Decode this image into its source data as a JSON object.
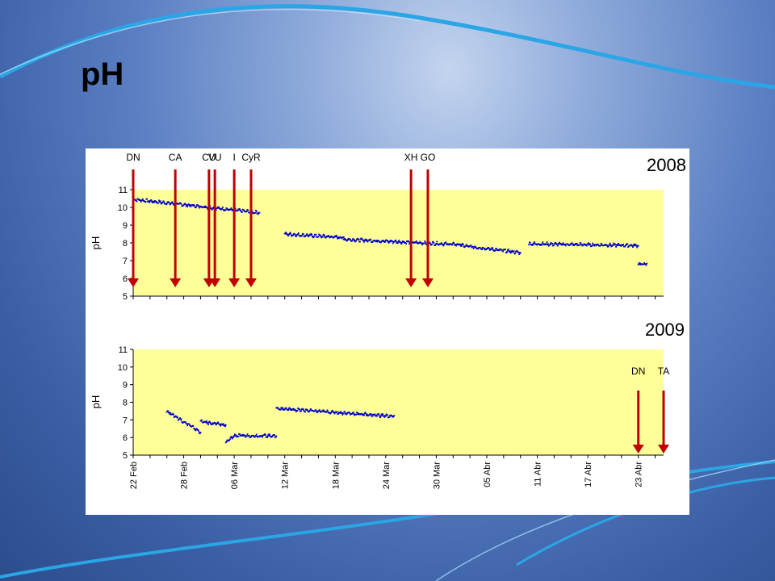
{
  "slide": {
    "title": "pH"
  },
  "colors": {
    "plot_bg": "#ffff99",
    "series": "#0000cc",
    "marker": "#c00000"
  },
  "chart_data": [
    {
      "type": "scatter",
      "year_label": "2008",
      "ylabel": "pH",
      "ylim": [
        5,
        11
      ],
      "yticks": [
        "5",
        "6",
        "7",
        "8",
        "9",
        "10",
        "11"
      ],
      "xlim": [
        "22 Feb",
        "26 Abr"
      ],
      "event_markers": [
        {
          "label": "DN",
          "date": "22 Feb"
        },
        {
          "label": "CA",
          "date": "27 Feb"
        },
        {
          "label": "CU",
          "date": "3 Mar"
        },
        {
          "label": "I",
          "date": "6 Mar"
        },
        {
          "label": "CyR",
          "date": "8 Mar"
        },
        {
          "label": "VU",
          "date": "",
          "hidden_date_note": ""
        },
        {
          "label": "XH",
          "date": "27 Mar"
        },
        {
          "label": "GO",
          "date": "29 Mar"
        }
      ],
      "segments": [
        {
          "start": "22 Feb",
          "end": "9 Mar",
          "y_start": 10.45,
          "y_end": 9.7
        },
        {
          "start": "12 Mar",
          "end": "19 Mar",
          "y_start": 8.5,
          "y_end": 8.3
        },
        {
          "start": "19 Mar",
          "end": "2 Abr",
          "y_start": 8.2,
          "y_end": 7.9
        },
        {
          "start": "2 Abr",
          "end": "9 Abr",
          "y_start": 7.85,
          "y_end": 7.45
        },
        {
          "start": "10 Abr",
          "end": "23 Abr",
          "y_start": 7.95,
          "y_end": 7.85
        },
        {
          "start": "23 Abr",
          "end": "24 Abr",
          "y_start": 6.8,
          "y_end": 6.8
        }
      ]
    },
    {
      "type": "scatter",
      "year_label": "2009",
      "ylabel": "pH",
      "ylim": [
        5,
        11
      ],
      "yticks": [
        "5",
        "6",
        "7",
        "8",
        "9",
        "10",
        "11"
      ],
      "xlim": [
        "22 Feb",
        "26 Abr"
      ],
      "xticks": [
        "22 Feb",
        "28 Feb",
        "06 Mar",
        "12 Mar",
        "18 Mar",
        "24 Mar",
        "30 Mar",
        "05 Abr",
        "11 Abr",
        "17 Abr",
        "23 Abr"
      ],
      "event_markers": [
        {
          "label": "DN",
          "date": "23 Abr"
        },
        {
          "label": "TA",
          "date": "26 Abr"
        }
      ],
      "segments": [
        {
          "start": "26 Feb",
          "end": "2 Mar",
          "y_start": 7.5,
          "y_end": 6.3
        },
        {
          "start": "2 Mar",
          "end": "5 Mar",
          "y_start": 6.9,
          "y_end": 6.7
        },
        {
          "start": "5 Mar",
          "end": "6 Mar",
          "y_start": 5.7,
          "y_end": 6.1
        },
        {
          "start": "6 Mar",
          "end": "11 Mar",
          "y_start": 6.1,
          "y_end": 6.1
        },
        {
          "start": "11 Mar",
          "end": "25 Mar",
          "y_start": 7.65,
          "y_end": 7.2
        }
      ]
    }
  ]
}
